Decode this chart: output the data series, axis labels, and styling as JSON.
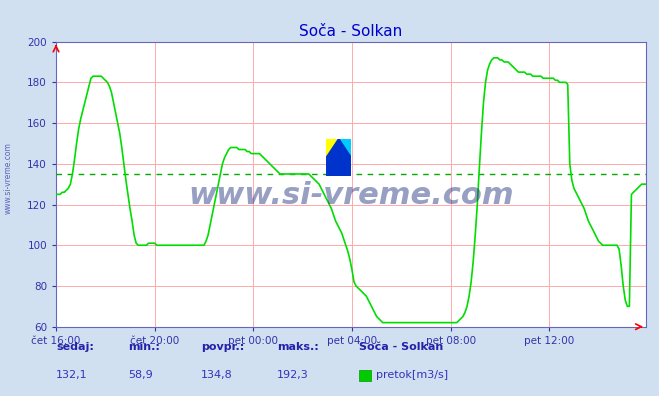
{
  "title": "Soča - Solkan",
  "title_color": "#0000cc",
  "background_color": "#d0e0f0",
  "plot_bg_color": "#ffffff",
  "grid_color": "#ffaaaa",
  "line_color": "#00dd00",
  "line_width": 1.2,
  "avg_line_color": "#00aa00",
  "avg_line_value": 134.8,
  "avg_line_style": "--",
  "ylabel_color": "#3333aa",
  "xlabel_color": "#3333aa",
  "tick_color": "#3333aa",
  "ylim": [
    60,
    200
  ],
  "yticks": [
    60,
    80,
    100,
    120,
    140,
    160,
    180,
    200
  ],
  "xtick_labels": [
    "čet 16:00",
    "čet 20:00",
    "pet 00:00",
    "pet 04:00",
    "pet 08:00",
    "pet 12:00"
  ],
  "xtick_positions": [
    0,
    48,
    96,
    144,
    192,
    240
  ],
  "total_points": 288,
  "watermark_text": "www.si-vreme.com",
  "watermark_color": "#1a2a7a",
  "watermark_alpha": 0.45,
  "watermark_fontsize": 22,
  "footer_labels": [
    "sedaj:",
    "min.:",
    "povpr.:",
    "maks.:",
    "Soča - Solkan"
  ],
  "footer_values": [
    "132,1",
    "58,9",
    "134,8",
    "192,3"
  ],
  "footer_legend_color": "#00cc00",
  "footer_legend_label": "pretok[m3/s]",
  "axis_color": "#6666bb",
  "sidebar_text": "www.si-vreme.com",
  "series": [
    125,
    125,
    125,
    126,
    126,
    127,
    128,
    130,
    135,
    142,
    150,
    157,
    162,
    166,
    170,
    174,
    178,
    182,
    183,
    183,
    183,
    183,
    183,
    182,
    181,
    180,
    178,
    175,
    170,
    165,
    160,
    155,
    148,
    140,
    132,
    125,
    118,
    112,
    105,
    101,
    100,
    100,
    100,
    100,
    100,
    101,
    101,
    101,
    101,
    100,
    100,
    100,
    100,
    100,
    100,
    100,
    100,
    100,
    100,
    100,
    100,
    100,
    100,
    100,
    100,
    100,
    100,
    100,
    100,
    100,
    100,
    100,
    100,
    102,
    105,
    110,
    115,
    120,
    125,
    130,
    135,
    140,
    143,
    145,
    147,
    148,
    148,
    148,
    148,
    147,
    147,
    147,
    147,
    146,
    146,
    145,
    145,
    145,
    145,
    145,
    144,
    143,
    142,
    141,
    140,
    139,
    138,
    137,
    136,
    135,
    135,
    135,
    135,
    135,
    135,
    135,
    135,
    135,
    135,
    135,
    135,
    135,
    135,
    135,
    134,
    133,
    132,
    131,
    130,
    128,
    126,
    124,
    122,
    120,
    118,
    115,
    112,
    110,
    108,
    106,
    103,
    100,
    97,
    93,
    88,
    82,
    80,
    79,
    78,
    77,
    76,
    75,
    73,
    71,
    69,
    67,
    65,
    64,
    63,
    62,
    62,
    62,
    62,
    62,
    62,
    62,
    62,
    62,
    62,
    62,
    62,
    62,
    62,
    62,
    62,
    62,
    62,
    62,
    62,
    62,
    62,
    62,
    62,
    62,
    62,
    62,
    62,
    62,
    62,
    62,
    62,
    62,
    62,
    62,
    62,
    62,
    63,
    64,
    65,
    67,
    70,
    75,
    82,
    92,
    105,
    120,
    138,
    155,
    170,
    180,
    186,
    189,
    191,
    192,
    192,
    192,
    191,
    191,
    190,
    190,
    190,
    189,
    188,
    187,
    186,
    185,
    185,
    185,
    185,
    184,
    184,
    184,
    183,
    183,
    183,
    183,
    183,
    182,
    182,
    182,
    182,
    182,
    182,
    181,
    181,
    180,
    180,
    180,
    180,
    179,
    140,
    132,
    128,
    126,
    124,
    122,
    120,
    118,
    115,
    112,
    110,
    108,
    106,
    104,
    102,
    101,
    100,
    100,
    100,
    100,
    100,
    100,
    100,
    100,
    98,
    90,
    80,
    73,
    70,
    70,
    125,
    126,
    127,
    128,
    129,
    130,
    130,
    130,
    130,
    130,
    130,
    130,
    130,
    130,
    130,
    130,
    130,
    130,
    130,
    130
  ]
}
